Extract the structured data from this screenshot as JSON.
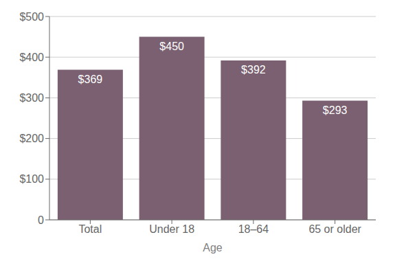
{
  "chart_data": {
    "type": "bar",
    "xlabel": "Age",
    "categories": [
      "Total",
      "Under 18",
      "18–64",
      "65 or older"
    ],
    "values": [
      369,
      450,
      392,
      293
    ],
    "value_labels": [
      "$369",
      "$450",
      "$392",
      "$293"
    ],
    "data_labels": true,
    "color": "#7a6070",
    "ylim": [
      0,
      500
    ],
    "yticks": [
      0,
      {
        "value": 100,
        "label": "$100"
      },
      {
        "value": 200,
        "label": "$200"
      },
      {
        "value": 300,
        "label": "$300"
      },
      {
        "value": 400,
        "label": "$400"
      },
      {
        "value": 500,
        "label": "$500"
      }
    ],
    "grid": true
  }
}
